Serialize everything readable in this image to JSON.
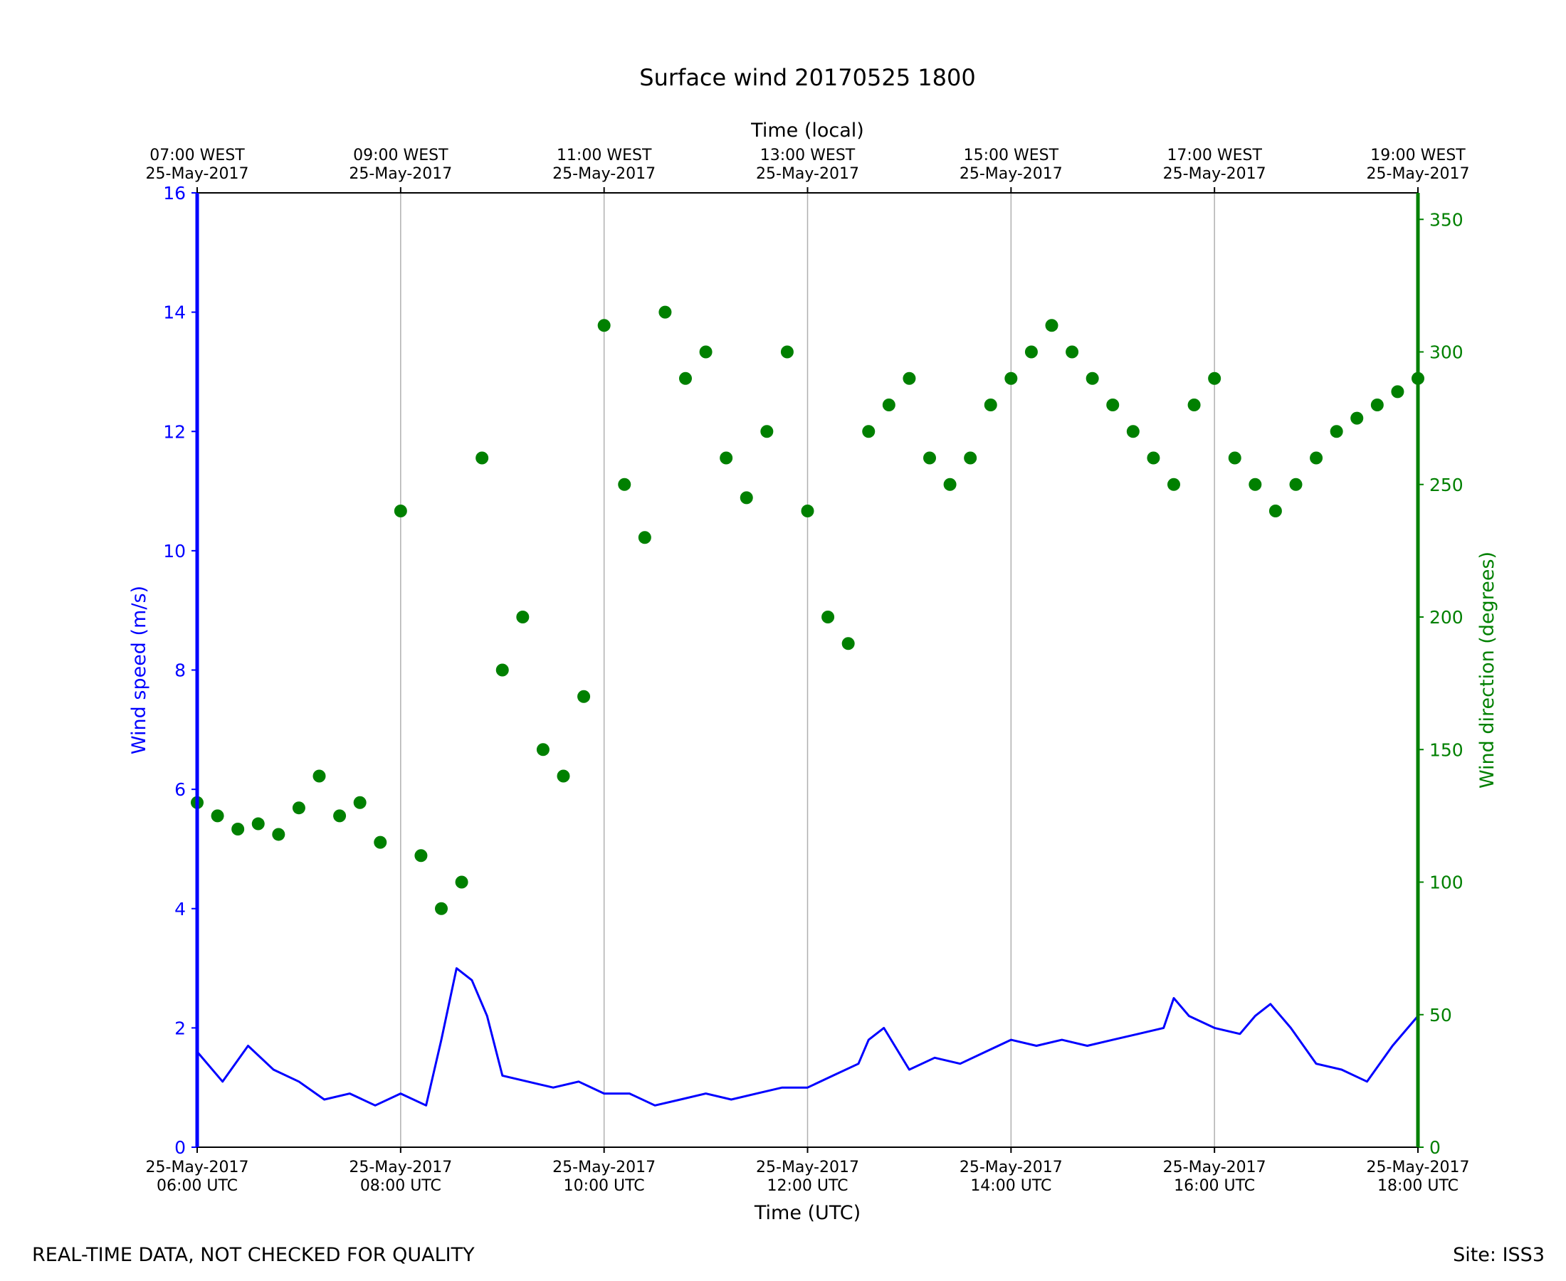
{
  "chart_data": {
    "type": "line+scatter",
    "title": "Surface wind 20170525 1800",
    "xlabel_bottom": "Time (UTC)",
    "xlabel_top": "Time (local)",
    "ylabel_left": "Wind speed (m/s)",
    "ylabel_right": "Wind direction (degrees)",
    "x_range_hours_utc": [
      6,
      18
    ],
    "ylim_left": [
      0,
      16
    ],
    "ylim_right": [
      0,
      360
    ],
    "yticks_left": [
      "0",
      "2",
      "4",
      "6",
      "8",
      "10",
      "12",
      "14",
      "16"
    ],
    "yticks_right": [
      "0",
      "50",
      "100",
      "150",
      "200",
      "250",
      "300",
      "350"
    ],
    "xticks_bottom": [
      {
        "hour": 6,
        "date": "25-May-2017",
        "time": "06:00 UTC"
      },
      {
        "hour": 8,
        "date": "25-May-2017",
        "time": "08:00 UTC"
      },
      {
        "hour": 10,
        "date": "25-May-2017",
        "time": "10:00 UTC"
      },
      {
        "hour": 12,
        "date": "25-May-2017",
        "time": "12:00 UTC"
      },
      {
        "hour": 14,
        "date": "25-May-2017",
        "time": "14:00 UTC"
      },
      {
        "hour": 16,
        "date": "25-May-2017",
        "time": "16:00 UTC"
      },
      {
        "hour": 18,
        "date": "25-May-2017",
        "time": "18:00 UTC"
      }
    ],
    "xticks_top": [
      {
        "hour": 6,
        "time": "07:00 WEST",
        "date": "25-May-2017"
      },
      {
        "hour": 8,
        "time": "09:00 WEST",
        "date": "25-May-2017"
      },
      {
        "hour": 10,
        "time": "11:00 WEST",
        "date": "25-May-2017"
      },
      {
        "hour": 12,
        "time": "13:00 WEST",
        "date": "25-May-2017"
      },
      {
        "hour": 14,
        "time": "15:00 WEST",
        "date": "25-May-2017"
      },
      {
        "hour": 16,
        "time": "17:00 WEST",
        "date": "25-May-2017"
      },
      {
        "hour": 18,
        "time": "19:00 WEST",
        "date": "25-May-2017"
      }
    ],
    "grid": "vertical at major x ticks",
    "series": [
      {
        "name": "Wind speed",
        "axis": "left",
        "style": "line",
        "color": "#0000ff",
        "x_hours": [
          6.0,
          6.25,
          6.5,
          6.75,
          7.0,
          7.25,
          7.5,
          7.75,
          8.0,
          8.25,
          8.4,
          8.55,
          8.7,
          8.85,
          9.0,
          9.25,
          9.5,
          9.75,
          10.0,
          10.25,
          10.5,
          10.75,
          11.0,
          11.25,
          11.5,
          11.75,
          12.0,
          12.25,
          12.5,
          12.6,
          12.75,
          13.0,
          13.25,
          13.5,
          13.75,
          14.0,
          14.25,
          14.5,
          14.75,
          15.0,
          15.25,
          15.5,
          15.6,
          15.75,
          16.0,
          16.25,
          16.4,
          16.55,
          16.75,
          17.0,
          17.25,
          17.5,
          17.75,
          18.0
        ],
        "values": [
          1.6,
          1.1,
          1.7,
          1.3,
          1.1,
          0.8,
          0.9,
          0.7,
          0.9,
          0.7,
          1.8,
          3.0,
          2.8,
          2.2,
          1.2,
          1.1,
          1.0,
          1.1,
          0.9,
          0.9,
          0.7,
          0.8,
          0.9,
          0.8,
          0.9,
          1.0,
          1.0,
          1.2,
          1.4,
          1.8,
          2.0,
          1.3,
          1.5,
          1.4,
          1.6,
          1.8,
          1.7,
          1.8,
          1.7,
          1.8,
          1.9,
          2.0,
          2.5,
          2.2,
          2.0,
          1.9,
          2.2,
          2.4,
          2.0,
          1.4,
          1.3,
          1.1,
          1.7,
          2.2
        ]
      },
      {
        "name": "Wind direction",
        "axis": "right",
        "style": "scatter",
        "color": "#008000",
        "x_hours": [
          6.0,
          6.2,
          6.4,
          6.6,
          6.8,
          7.0,
          7.2,
          7.4,
          7.6,
          7.8,
          8.0,
          8.2,
          8.4,
          8.6,
          8.8,
          9.0,
          9.2,
          9.4,
          9.6,
          9.8,
          10.0,
          10.2,
          10.4,
          10.6,
          10.8,
          11.0,
          11.2,
          11.4,
          11.6,
          11.8,
          12.0,
          12.2,
          12.4,
          12.6,
          12.8,
          13.0,
          13.2,
          13.4,
          13.6,
          13.8,
          14.0,
          14.2,
          14.4,
          14.6,
          14.8,
          15.0,
          15.2,
          15.4,
          15.6,
          15.8,
          16.0,
          16.2,
          16.4,
          16.6,
          16.8,
          17.0,
          17.2,
          17.4,
          17.6,
          17.8,
          18.0
        ],
        "values": [
          130,
          125,
          120,
          122,
          118,
          128,
          140,
          125,
          130,
          115,
          240,
          110,
          90,
          100,
          260,
          180,
          200,
          150,
          140,
          170,
          310,
          250,
          230,
          315,
          290,
          300,
          260,
          245,
          270,
          300,
          240,
          200,
          190,
          270,
          280,
          290,
          260,
          250,
          260,
          280,
          290,
          300,
          310,
          300,
          290,
          280,
          270,
          260,
          250,
          280,
          290,
          260,
          250,
          240,
          250,
          260,
          270,
          275,
          280,
          285,
          290
        ],
        "note": "representative points estimated from a dense scatter"
      }
    ]
  },
  "footer": {
    "left": "REAL-TIME DATA, NOT CHECKED FOR QUALITY",
    "right": "Site: ISS3"
  },
  "colors": {
    "speed": "#0000ff",
    "direction": "#008000",
    "grid": "#b0b0b0"
  }
}
